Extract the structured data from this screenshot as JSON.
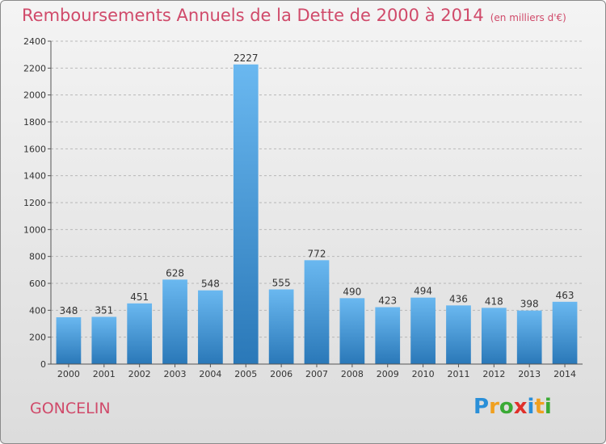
{
  "title": "Remboursements Annuels de la Dette de 2000 à 2014",
  "subtitle": "(en milliers d'€)",
  "city": "GONCELIN",
  "logo": {
    "letters": [
      "P",
      "r",
      "o",
      "x",
      "i",
      "t",
      "i"
    ],
    "colors": [
      "#2a8fd8",
      "#f0a020",
      "#3aaa35",
      "#e0302a",
      "#2a8fd8",
      "#f0a020",
      "#3aaa35"
    ]
  },
  "colors": {
    "bar_top": "#6ab8f0",
    "bar_bottom": "#2a78b8",
    "accent": "#d04a6a"
  },
  "chart_data": {
    "type": "bar",
    "categories": [
      "2000",
      "2001",
      "2002",
      "2003",
      "2004",
      "2005",
      "2006",
      "2007",
      "2008",
      "2009",
      "2010",
      "2011",
      "2012",
      "2013",
      "2014"
    ],
    "values": [
      348,
      351,
      451,
      628,
      548,
      2227,
      555,
      772,
      490,
      423,
      494,
      436,
      418,
      398,
      463
    ],
    "ylim": [
      0,
      2400
    ],
    "yticks": [
      0,
      200,
      400,
      600,
      800,
      1000,
      1200,
      1400,
      1600,
      1800,
      2000,
      2200,
      2400
    ],
    "grid": true
  }
}
